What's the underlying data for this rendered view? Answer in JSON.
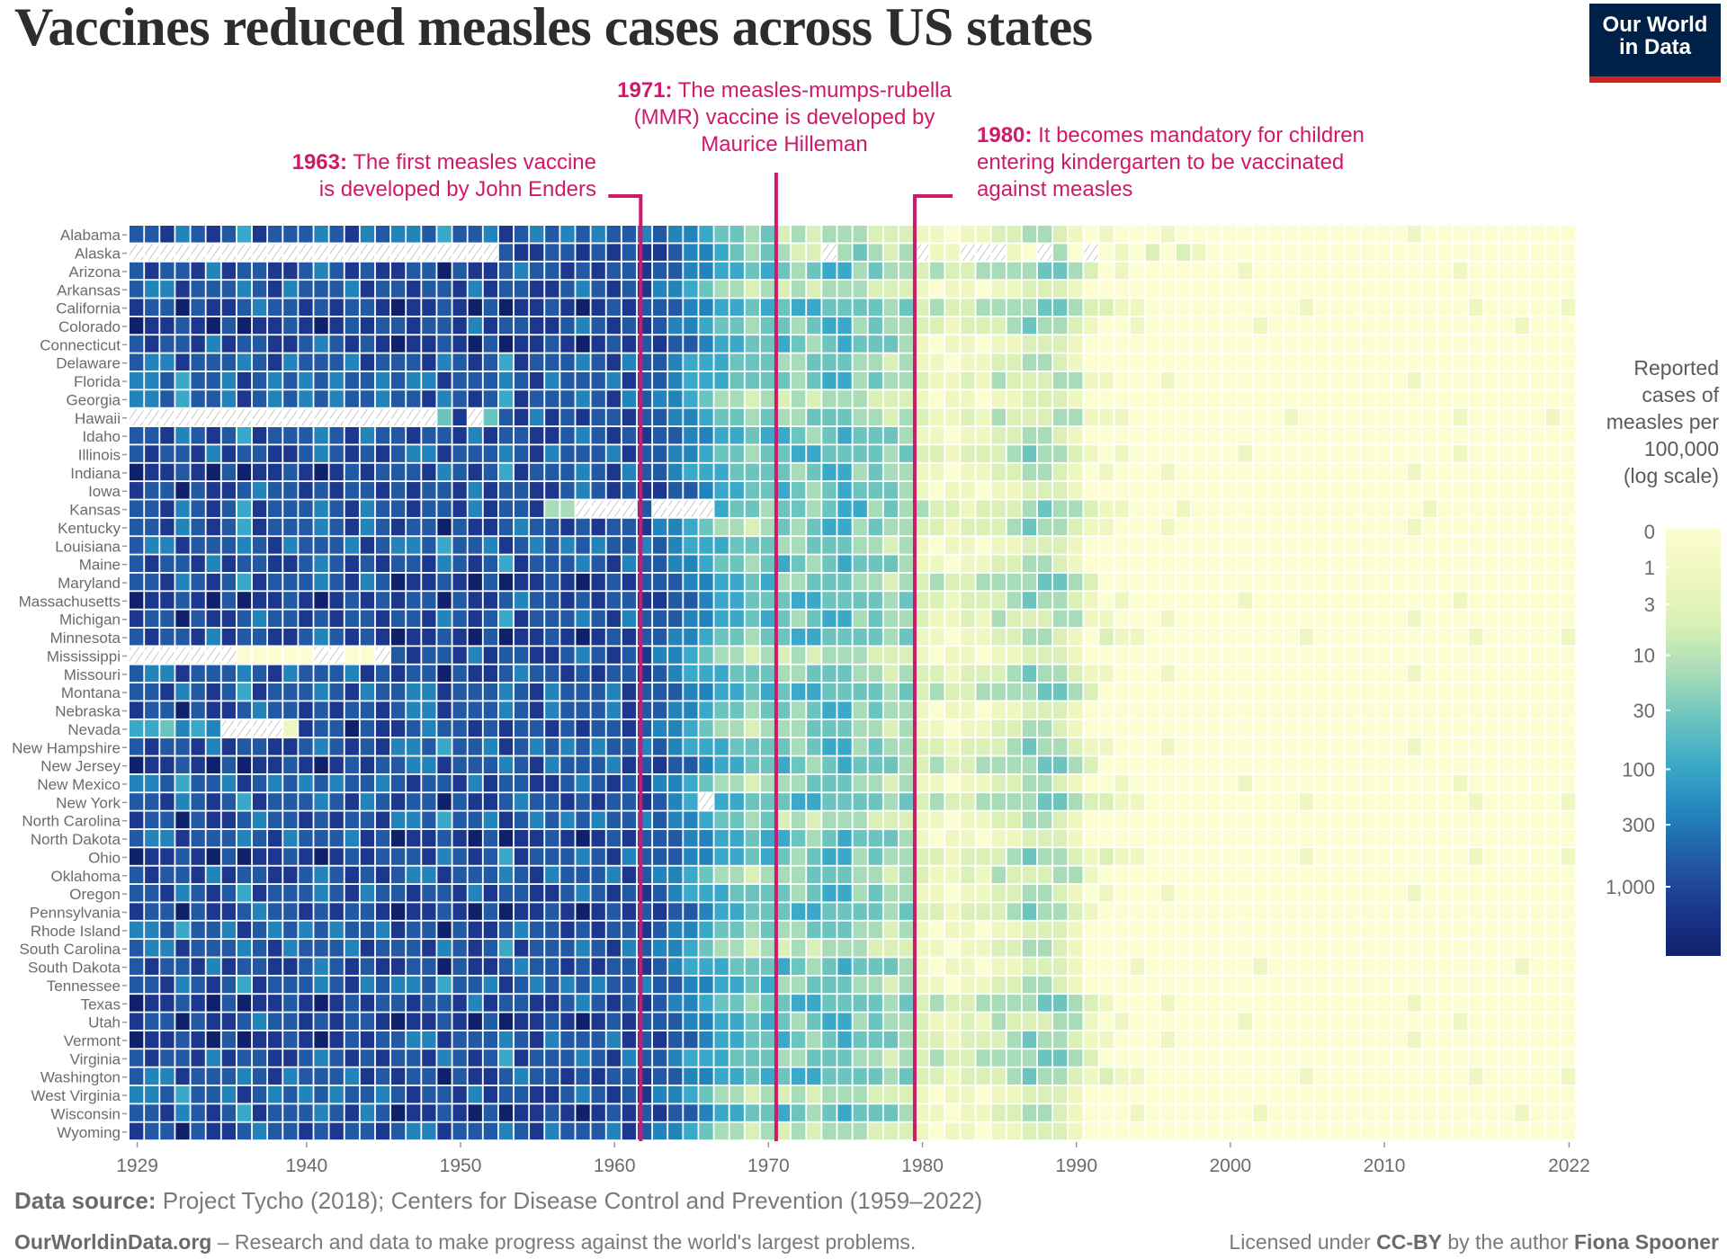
{
  "header": {
    "title": "Vaccines reduced measles cases across US states",
    "logo_line1": "Our World",
    "logo_line2": "in Data"
  },
  "annotations": [
    {
      "year": 1963,
      "bold": "1963:",
      "lines": [
        "The first measles vaccine",
        "is developed by John Enders"
      ]
    },
    {
      "year": 1971,
      "bold": "1971:",
      "lines": [
        "The measles-mumps-rubella",
        "(MMR) vaccine is developed by",
        "Maurice Hilleman"
      ]
    },
    {
      "year": 1980,
      "bold": "1980:",
      "lines": [
        "It becomes mandatory for children",
        "entering kindergarten to be vaccinated",
        "against measles"
      ]
    }
  ],
  "legend": {
    "title_lines": [
      "Reported",
      "cases of",
      "measles per",
      "100,000",
      "(log scale)"
    ],
    "ticks": [
      "0",
      "1",
      "3",
      "10",
      "30",
      "100",
      "300",
      "1,000"
    ]
  },
  "footer": {
    "source_label": "Data source:",
    "source_text": " Project Tycho (2018); Centers for Disease Control and Prevention (1959–2022)",
    "site_bold": "OurWorldinData.org",
    "site_text": " – Research and data to make progress against the world's largest problems.",
    "license_prefix": "Licensed under ",
    "license_bold": "CC-BY",
    "license_mid": " by the author ",
    "license_author": "Fiona Spooner"
  },
  "chart_data": {
    "type": "heatmap",
    "title": "Vaccines reduced measles cases across US states",
    "x_start": 1929,
    "x_end": 2022,
    "x_ticks": [
      "1929",
      "1940",
      "1950",
      "1960",
      "1970",
      "1980",
      "1990",
      "2000",
      "2010",
      "2022"
    ],
    "color_scale": "log",
    "color_label": "Reported cases of measles per 100,000 (log scale)",
    "color_stops": [
      "#fcfdd0",
      "#eef7c0",
      "#daf0b6",
      "#a8dcb8",
      "#6cc4bf",
      "#3aa8c9",
      "#2383bb",
      "#2259a4",
      "#1c378e",
      "#0f216a"
    ],
    "missing_code": "x",
    "code_values": [
      0,
      0.5,
      1,
      3,
      10,
      30,
      100,
      300,
      1000,
      2000
    ],
    "rows": [
      {
        "state": "Alabama",
        "codes": "7786787587776786766757768767676776766544342323332221101122332101000100000000000000010000000000"
      },
      {
        "state": "Alaska",
        "codes": "xxxxxxxxxxxxxxxxxxxxxxxx788778787887665434322x34323x11xxx10x30x0102021000000000000000000000000"
      },
      {
        "state": "Arizona",
        "codes": "7877868778876787887797887677878778776655454345534332322333344320100000001000000000000010000000"
      },
      {
        "state": "Arkansas",
        "codes": "7668777678677768778778687788767878665433232323332221011011222100000000000000000000000000000000"
      },
      {
        "state": "California",
        "codes": "8779788767787877898878979887898787776655454554444342322333344322110000000000100000000001000001"
      },
      {
        "state": "Colorado",
        "codes": "9887897988789878778778687788767878766544344345534332212223433210010000000100000000000000001000"
      },
      {
        "state": "Connecticut",
        "codes": "7877868778876787898878979887898787877655445434544431011011222100000000000000000000000000000000"
      },
      {
        "state": "Delaware",
        "codes": "7668777678677768777867875877767867765554443344433231101122332100000000000000000000000000000000"
      },
      {
        "state": "Florida",
        "codes": "6675776876767677676687776786777687765554444345534332112132223311000100000000000000010000000000"
      },
      {
        "state": "Georgia",
        "codes": "6675776876767677677867875877767867665433232323332221011011222100000000000000000000000000000000"
      },
      {
        "state": "Hawaii",
        "codes": "xxxxxxxxxxxxxxxxxxxx48x4786878778776654434334443323211213222331110000000000100000000001000001"
      },
      {
        "state": "Idaho",
        "codes": "7786787587776786778778687788767878776655455434544431101122332100000000000000000000000000000000"
      },
      {
        "state": "Illinois",
        "codes": "7877868778876787876687776786777687766544344554444342212223433210100000001000000000000010000000"
      },
      {
        "state": "Indiana",
        "codes": "9887897988789878777867875877767867765554444345534331101122332101000100000000000000010000000000"
      },
      {
        "state": "Iowa",
        "codes": "8779788767787877878778687788767878877655445434544431011011222100000000000000000000000000000000"
      },
      {
        "state": "Kansas",
        "codes": "77867875877767867787786877833xxxx7xxxx544344345534332212223433211000100000000000000010000000000"
      },
      {
        "state": "Kentucky",
        "codes": "7786787587776786787797887677878778665433234345534332212223433211000100000000000000010000000000"
      },
      {
        "state": "Louisiana",
        "codes": "7668777678677768766757768767676776765554443344433231011011222100000000000000000000000000000000"
      },
      {
        "state": "Maine",
        "codes": "7877868778876787877867875877767867766544345434544431101122332100000000000000000000000000000000"
      },
      {
        "state": "Maryland",
        "codes": "7786787587776786798878979887898787776655453344433232322333344320000000000000000000000000000000"
      },
      {
        "state": "Massachusetts",
        "codes": "9887897988789878787797887677878778877655444554444342212223433210100000001000000000000010000000"
      },
      {
        "state": "Michigan",
        "codes": "8779788767787877877867875877767867776655454345534332112132223311000100000000000000010000000000"
      },
      {
        "state": "Minnesota",
        "codes": "7877868778876787898878979887898787766544344554444341101122332102110000000000100000000001000001"
      },
      {
        "state": "Mississippi",
        "codes": "xxxxxxx00000xx00x78778687788767878665433232323332221011011222100000000000000000000000000000000"
      },
      {
        "state": "Missouri",
        "codes": "7668777678677768787797887677878778765554443344433232212223433211000100000000000000010000000000"
      },
      {
        "state": "Montana",
        "codes": "7786787587776786776687776786777687776655454554444342322333344320000000000000000000000000000000"
      },
      {
        "state": "Nebraska",
        "codes": "8779788767787877876687776786777687766544344345534331011011222100000000000000000000000000000000"
      },
      {
        "state": "Nevada",
        "codes": "554656xxxx187797887677878778787787665433233344433231101122332100000000000000000000000000000000"
      },
      {
        "state": "New Hampshire",
        "codes": "7877868778876787866757768767676776765554444345534332212223433211000100000000000000010000000000"
      },
      {
        "state": "New Jersey",
        "codes": "9887897988789878776687776786777687877655445434544432322333344320000000000000000000000000000000"
      },
      {
        "state": "New Mexico",
        "codes": "6675776876767677678778687788767878665433233344433231101122332100100000001000000000000010000000"
      },
      {
        "state": "New York",
        "codes": "778678758777678678779788767787877876 5x55444554444342322333344322110000000000100000000001000001"
      },
      {
        "state": "North Carolina",
        "codes": "8779788767787877866757768767676776766544342323332221101122332100000000000000000000000000000000"
      },
      {
        "state": "North Dakota",
        "codes": "7668777678677768798878979887898787776655455434544431011011222100000000000000000000000000000000"
      },
      {
        "state": "Ohio",
        "codes": "9887897988789878777867875877767867776655454345534332212223433212110000000000100000000001000001"
      },
      {
        "state": "Oklahoma",
        "codes": "7877868778876787876687776786777687665433233344433232112132223310000000000000000000000000000000"
      },
      {
        "state": "Oregon",
        "codes": "7786787587776786778778687788767878765554444345534331101122332101000100000000000000010000000000"
      },
      {
        "state": "Pennsylvania",
        "codes": "8779788767787877898878979887898787877655444554444342212223433210000000000000000000000000000000"
      },
      {
        "state": "Rhode Island",
        "codes": "6675776876767677687797887677878778766544343344433231011011222100000000000000000000000000000000"
      },
      {
        "state": "South Carolina",
        "codes": "7668777678677768777867875877767867665433232323332221101122332100000000000000000000000000000000"
      },
      {
        "state": "South Dakota",
        "codes": "7877868778876787887797887677878778765554445434544431011011222100010000000100000000000000001000"
      },
      {
        "state": "Tennessee",
        "codes": "7786787587776786766757768767676776776655453344433231101122332100000000000000000000000000000000"
      },
      {
        "state": "Texas",
        "codes": "9887897988789878778778687788767878766544344554444342322333344321000100000000000000010000000000"
      },
      {
        "state": "Utah",
        "codes": "8779788767787877898878979887898787776655454345534332112132223310100000001000000000000010000000"
      },
      {
        "state": "Vermont",
        "codes": "9887897988789878776687776786777687877655445434544432212223433211000100000000000000010000000000"
      },
      {
        "state": "Virginia",
        "codes": "7877868778876787877867875877767867765554443344433232322333344320000000000000000000000000000000"
      },
      {
        "state": "Washington",
        "codes": "7668777678677768787797887677878778776655454554444342212223433212110000000000100000000001000001"
      },
      {
        "state": "West Virginia",
        "codes": "6675776876767677678778687788767878665433232323332221011011222100000000000000000000000000000000"
      },
      {
        "state": "Wisconsin",
        "codes": "7786787587776786798878979887898787877655445434544431101122332100010000000100000000000000001000"
      },
      {
        "state": "Wyoming",
        "codes": "8779788767787877876687776786777687665433232323332221011011222100000000000000000000000000000000"
      }
    ]
  },
  "colors": {
    "annotation": "#d0196b",
    "logo_bg": "#002147",
    "logo_bar": "#ce261e",
    "text": "#5b5b5b",
    "missing_hatch": "#b5b5b5"
  }
}
